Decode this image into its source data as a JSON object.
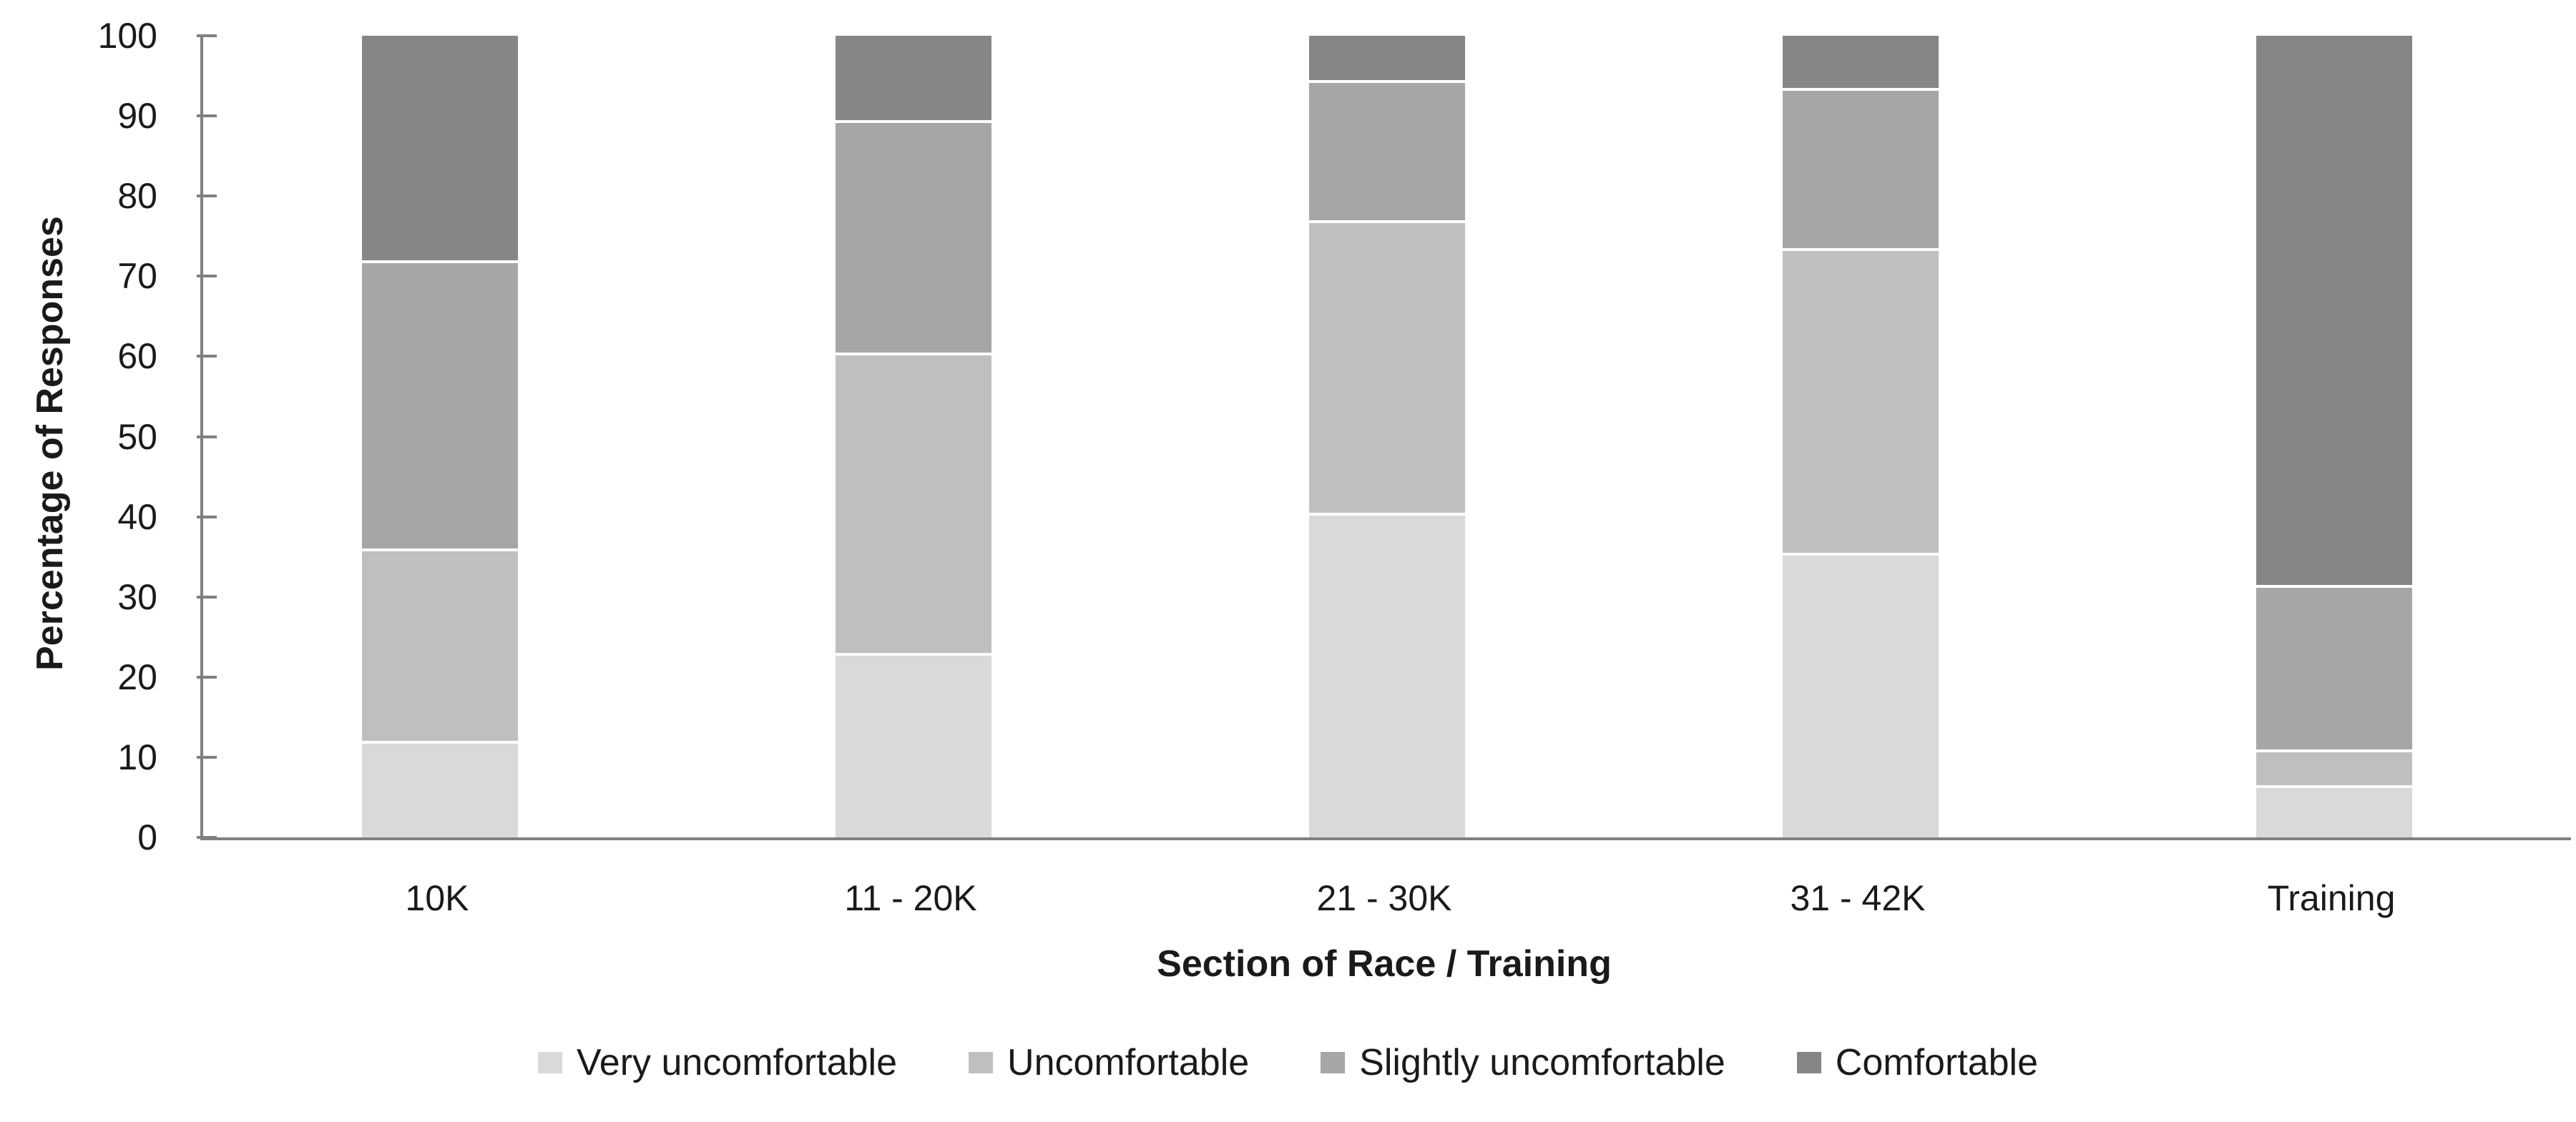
{
  "chart_data": {
    "type": "bar",
    "stacked": true,
    "title": "",
    "xlabel": "Section of Race / Training",
    "ylabel": "Percentage of Responses",
    "categories": [
      "10K",
      "11 - 20K",
      "21 - 30K",
      "31 - 42K",
      "Training"
    ],
    "series": [
      {
        "name": "Very uncomfortable",
        "color": "#d9d9d9",
        "values": [
          12,
          23,
          40.5,
          35.5,
          6.5
        ]
      },
      {
        "name": "Uncomfortable",
        "color": "#bfbfbf",
        "values": [
          24,
          37.5,
          36.5,
          38,
          4.5
        ]
      },
      {
        "name": "Slightly uncomfortable",
        "color": "#a6a6a6",
        "values": [
          36,
          29,
          17.5,
          20,
          20.5
        ]
      },
      {
        "name": "Comfortable",
        "color": "#868686",
        "values": [
          28,
          10.5,
          5.5,
          6.5,
          68.5
        ]
      }
    ],
    "ylim": [
      0,
      100
    ],
    "yticks": [
      0,
      10,
      20,
      30,
      40,
      50,
      60,
      70,
      80,
      90,
      100
    ],
    "units": "percent",
    "grid": false,
    "legend_position": "bottom",
    "axis_color": "#808080",
    "separator_color": "#ffffff",
    "text_color": "#1a1a1a"
  }
}
